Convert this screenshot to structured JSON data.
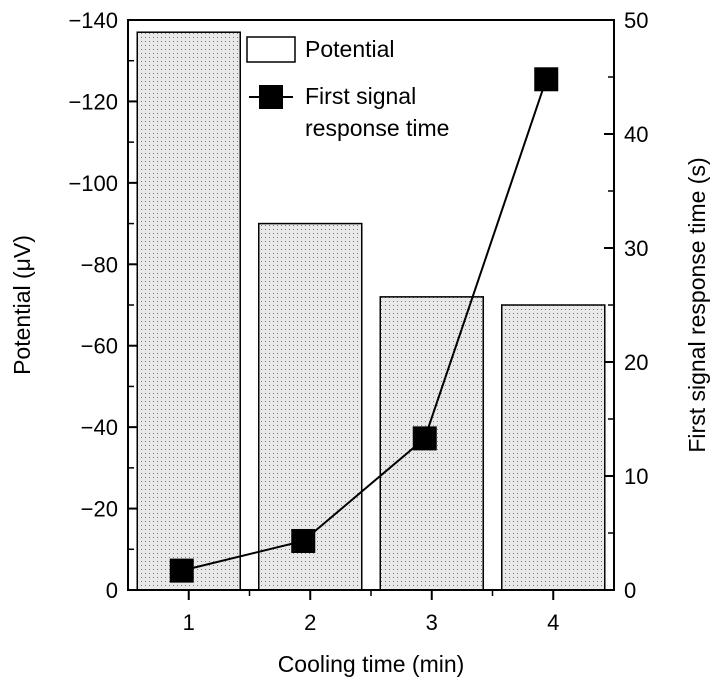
{
  "chart_data": {
    "type": "bar",
    "categories": [
      "1",
      "2",
      "3",
      "4"
    ],
    "xlabel": "Cooling time (min)",
    "ylabel_left": "Potential (μV)",
    "ylabel_right": "First signal response time (s)",
    "ylim_left": [
      0,
      -140
    ],
    "ylim_right": [
      0,
      50
    ],
    "left_ticks": [
      "0",
      "−20",
      "−40",
      "−60",
      "−80",
      "−100",
      "−120",
      "−140"
    ],
    "right_ticks": [
      "0",
      "10",
      "20",
      "30",
      "40",
      "50"
    ],
    "series": [
      {
        "name": "Potential",
        "kind": "bar",
        "axis": "left",
        "values": [
          -137,
          -90,
          -72,
          -70
        ],
        "fill": "dotted"
      },
      {
        "name": "First signal response time",
        "kind": "line",
        "axis": "right",
        "marker": "square",
        "values": [
          1.7,
          4.3,
          13.3,
          44.8
        ]
      }
    ],
    "legend": {
      "placement": "top-left",
      "items": [
        "Potential",
        "First signal",
        "response time"
      ]
    },
    "colors": {
      "bar_fill": "#e9e9e9",
      "dots": "#7a7a7a",
      "line": "#000000",
      "marker": "#000000"
    },
    "grid": false
  }
}
